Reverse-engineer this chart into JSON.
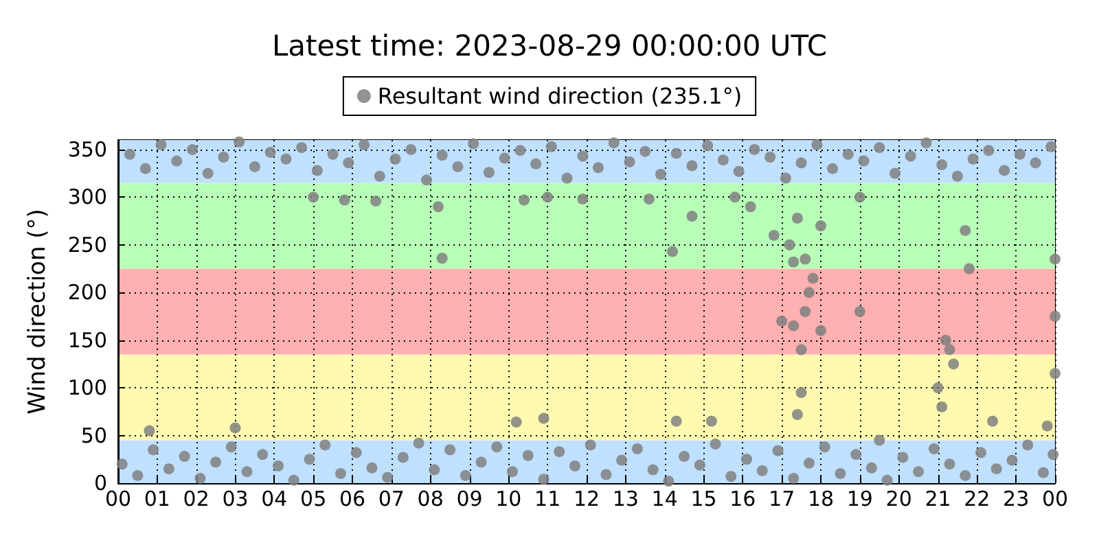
{
  "chart_data": {
    "type": "scatter",
    "title": "Latest time: 2023-08-29 00:00:00 UTC",
    "ylabel": "Wind direction (°)",
    "x": [
      0.1,
      0.5,
      0.9,
      1.3,
      1.7,
      2.1,
      2.5,
      2.9,
      3.3,
      3.7,
      4.1,
      4.5,
      4.9,
      5.3,
      5.7,
      6.1,
      6.5,
      6.9,
      7.3,
      7.7,
      8.1,
      8.5,
      8.9,
      9.3,
      9.7,
      10.1,
      10.5,
      10.9,
      11.3,
      11.7,
      12.1,
      12.5,
      12.9,
      13.3,
      13.7,
      14.1,
      14.5,
      14.9,
      15.3,
      15.7,
      16.1,
      16.5,
      16.9,
      17.3,
      17.7,
      18.1,
      18.5,
      18.9,
      19.3,
      19.7,
      20.1,
      20.5,
      20.9,
      21.3,
      21.7,
      22.1,
      22.5,
      22.9,
      23.3,
      23.7,
      23.95,
      0.3,
      0.7,
      1.1,
      1.5,
      1.9,
      2.3,
      2.7,
      3.1,
      3.5,
      3.9,
      4.3,
      4.7,
      5.1,
      5.5,
      5.9,
      6.3,
      6.7,
      7.1,
      7.5,
      7.9,
      8.3,
      8.7,
      9.1,
      9.5,
      9.9,
      10.3,
      10.7,
      11.1,
      11.5,
      11.9,
      12.3,
      12.7,
      13.1,
      13.5,
      13.9,
      14.3,
      14.7,
      15.1,
      15.5,
      15.9,
      16.3,
      16.7,
      17.1,
      17.5,
      17.9,
      18.3,
      18.7,
      19.1,
      19.5,
      19.9,
      20.3,
      20.7,
      21.1,
      21.5,
      21.9,
      22.3,
      22.7,
      23.1,
      23.5,
      23.9,
      5.0,
      5.8,
      6.6,
      8.2,
      8.3,
      10.4,
      11.0,
      11.9,
      13.6,
      14.2,
      14.7,
      15.8,
      16.2,
      16.8,
      17.2,
      17.3,
      17.6,
      17.4,
      18.0,
      19.0,
      21.7,
      21.8,
      24.0,
      17.0,
      17.3,
      17.6,
      17.7,
      17.8,
      17.5,
      18.0,
      19.0,
      21.2,
      21.3,
      21.4,
      24.0,
      0.8,
      3.0,
      10.2,
      10.9,
      14.3,
      15.2,
      17.4,
      17.5,
      19.5,
      21.0,
      21.1,
      22.4,
      23.8,
      24.0
    ],
    "series": [
      {
        "name": "Resultant wind direction (235.1°)",
        "color": "#808080",
        "values": [
          20,
          8,
          35,
          15,
          28,
          5,
          22,
          38,
          12,
          30,
          18,
          3,
          25,
          40,
          10,
          32,
          16,
          6,
          27,
          42,
          14,
          35,
          8,
          22,
          38,
          12,
          29,
          4,
          33,
          18,
          40,
          9,
          24,
          36,
          14,
          2,
          28,
          19,
          41,
          7,
          25,
          13,
          34,
          5,
          21,
          38,
          10,
          30,
          16,
          3,
          27,
          12,
          36,
          20,
          8,
          32,
          15,
          24,
          40,
          11,
          30,
          345,
          330,
          355,
          338,
          350,
          325,
          342,
          358,
          332,
          347,
          340,
          352,
          328,
          345,
          336,
          355,
          322,
          340,
          350,
          318,
          344,
          332,
          356,
          326,
          341,
          349,
          335,
          353,
          320,
          343,
          331,
          357,
          337,
          348,
          324,
          346,
          333,
          354,
          339,
          327,
          350,
          342,
          320,
          336,
          355,
          330,
          345,
          338,
          352,
          325,
          343,
          357,
          334,
          322,
          340,
          349,
          328,
          345,
          336,
          353,
          300,
          297,
          296,
          290,
          236,
          297,
          300,
          298,
          298,
          243,
          280,
          300,
          290,
          260,
          250,
          232,
          235,
          278,
          270,
          300,
          265,
          225,
          235,
          170,
          165,
          180,
          200,
          215,
          140,
          160,
          180,
          150,
          140,
          125,
          175,
          55,
          58,
          64,
          68,
          65,
          65,
          72,
          95,
          45,
          100,
          80,
          65,
          60,
          115
        ]
      }
    ],
    "xlim": [
      0,
      24
    ],
    "xticks": [
      {
        "value": 0,
        "label": "00"
      },
      {
        "value": 1,
        "label": "01"
      },
      {
        "value": 2,
        "label": "02"
      },
      {
        "value": 3,
        "label": "03"
      },
      {
        "value": 4,
        "label": "04"
      },
      {
        "value": 5,
        "label": "05"
      },
      {
        "value": 6,
        "label": "06"
      },
      {
        "value": 7,
        "label": "07"
      },
      {
        "value": 8,
        "label": "08"
      },
      {
        "value": 9,
        "label": "09"
      },
      {
        "value": 10,
        "label": "10"
      },
      {
        "value": 11,
        "label": "11"
      },
      {
        "value": 12,
        "label": "12"
      },
      {
        "value": 13,
        "label": "13"
      },
      {
        "value": 14,
        "label": "14"
      },
      {
        "value": 15,
        "label": "15"
      },
      {
        "value": 16,
        "label": "16"
      },
      {
        "value": 17,
        "label": "17"
      },
      {
        "value": 18,
        "label": "18"
      },
      {
        "value": 19,
        "label": "19"
      },
      {
        "value": 20,
        "label": "20"
      },
      {
        "value": 21,
        "label": "21"
      },
      {
        "value": 22,
        "label": "22"
      },
      {
        "value": 23,
        "label": "23"
      },
      {
        "value": 24,
        "label": "00"
      }
    ],
    "ylim": [
      0,
      360
    ],
    "yticks": [
      0,
      50,
      100,
      150,
      200,
      250,
      300,
      350
    ],
    "bands": [
      {
        "axis": "y",
        "from": 0,
        "to": 45,
        "color": "#c0e0ff"
      },
      {
        "axis": "y",
        "from": 45,
        "to": 135,
        "color": "#fffab0"
      },
      {
        "axis": "y",
        "from": 135,
        "to": 225,
        "color": "#ffb0b0"
      },
      {
        "axis": "y",
        "from": 225,
        "to": 315,
        "color": "#b8ffb8"
      },
      {
        "axis": "y",
        "from": 315,
        "to": 360,
        "color": "#c0e0ff"
      }
    ],
    "grid": true,
    "legend": "top",
    "marker": "circle"
  }
}
